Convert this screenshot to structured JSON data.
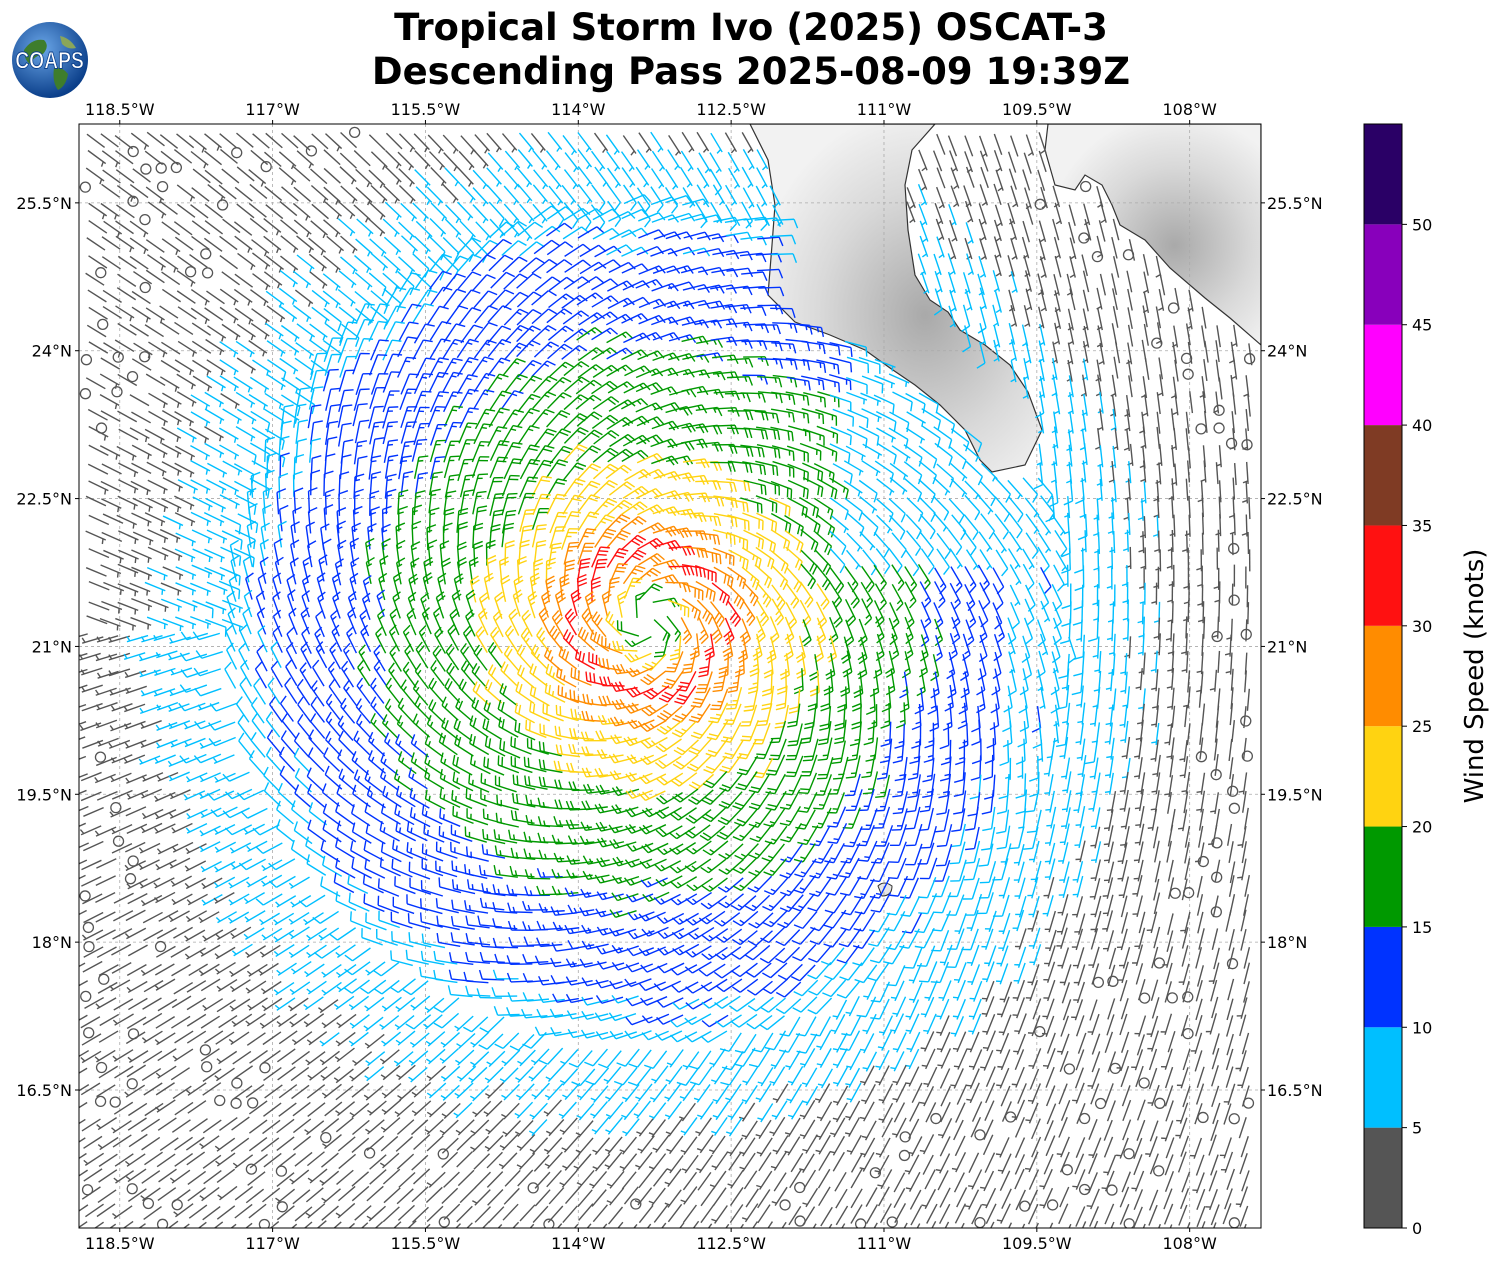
{
  "title": {
    "line1": "Tropical Storm Ivo (2025) OSCAT-3",
    "line2": "Descending Pass 2025-08-09 19:39Z"
  },
  "logo": {
    "text": "COAPS",
    "icon": "globe-icon"
  },
  "map": {
    "lon_range": [
      -118.9,
      -107.3
    ],
    "lat_range": [
      15.1,
      26.3
    ],
    "storm_center": {
      "lon": -113.3,
      "lat": 21.25
    },
    "gridlines": true,
    "land_color": "#d9d9d9",
    "lon_ticks": [
      {
        "value": -118.5,
        "label": "118.5°W"
      },
      {
        "value": -117.0,
        "label": "117°W"
      },
      {
        "value": -115.5,
        "label": "115.5°W"
      },
      {
        "value": -114.0,
        "label": "114°W"
      },
      {
        "value": -112.5,
        "label": "112.5°W"
      },
      {
        "value": -111.0,
        "label": "111°W"
      },
      {
        "value": -109.5,
        "label": "109.5°W"
      },
      {
        "value": -108.0,
        "label": "108°W"
      }
    ],
    "lat_ticks": [
      {
        "value": 25.5,
        "label": "25.5°N"
      },
      {
        "value": 24.0,
        "label": "24°N"
      },
      {
        "value": 22.5,
        "label": "22.5°N"
      },
      {
        "value": 21.0,
        "label": "21°N"
      },
      {
        "value": 19.5,
        "label": "19.5°N"
      },
      {
        "value": 18.0,
        "label": "18°N"
      },
      {
        "value": 16.5,
        "label": "16.5°N"
      }
    ]
  },
  "colorbar": {
    "label": "Wind Speed (knots)",
    "bins": [
      {
        "min": 0,
        "max": 5,
        "color": "#555555"
      },
      {
        "min": 5,
        "max": 10,
        "color": "#00bfff"
      },
      {
        "min": 10,
        "max": 15,
        "color": "#0033ff"
      },
      {
        "min": 15,
        "max": 20,
        "color": "#009900"
      },
      {
        "min": 20,
        "max": 25,
        "color": "#ffd311"
      },
      {
        "min": 25,
        "max": 30,
        "color": "#ff8c00"
      },
      {
        "min": 30,
        "max": 35,
        "color": "#ff1111"
      },
      {
        "min": 35,
        "max": 40,
        "color": "#7f3b24"
      },
      {
        "min": 40,
        "max": 45,
        "color": "#ff00ff"
      },
      {
        "min": 45,
        "max": 50,
        "color": "#8800bb"
      },
      {
        "min": 50,
        "max": 55,
        "color": "#2a0066"
      }
    ],
    "tick_labels": [
      "0",
      "5",
      "10",
      "15",
      "20",
      "25",
      "30",
      "35",
      "40",
      "45",
      "50"
    ]
  }
}
